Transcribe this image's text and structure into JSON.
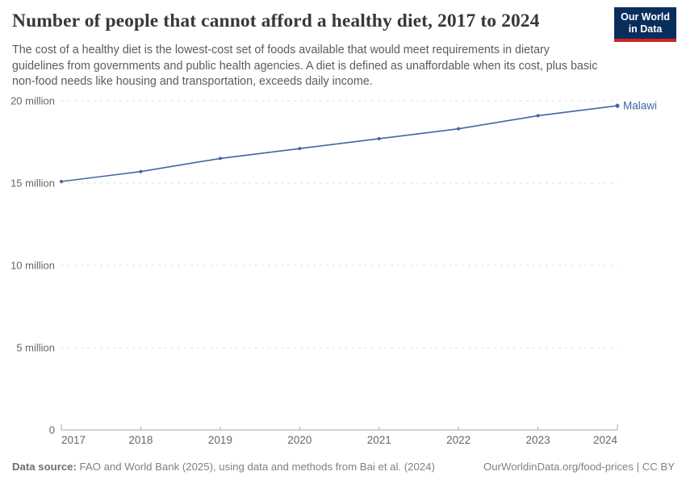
{
  "header": {
    "title": "Number of people that cannot afford a healthy diet, 2017 to 2024",
    "subtitle": "The cost of a healthy diet is the lowest-cost set of foods available that would meet requirements in dietary guidelines from governments and public health agencies. A diet is defined as unaffordable when its cost, plus basic non-food needs like housing and transportation, exceeds daily income.",
    "logo": {
      "line1": "Our World",
      "line2": "in Data",
      "bg_color": "#0A2E5C",
      "bar_color": "#CE261E",
      "text_color": "#FFFFFF"
    }
  },
  "chart_data": {
    "type": "line",
    "title": "Number of people that cannot afford a healthy diet, 2017 to 2024",
    "x": [
      2017,
      2018,
      2019,
      2020,
      2021,
      2022,
      2023,
      2024
    ],
    "series": [
      {
        "name": "Malawi",
        "color": "#4166A5",
        "values": [
          15.1,
          15.7,
          16.5,
          17.1,
          17.7,
          18.3,
          19.1,
          19.7
        ]
      }
    ],
    "unit": "million people",
    "ylim": [
      0,
      20
    ],
    "xlim": [
      2017,
      2024
    ],
    "y_ticks": [
      {
        "value": 0,
        "label": "0"
      },
      {
        "value": 5,
        "label": "5 million"
      },
      {
        "value": 10,
        "label": "10 million"
      },
      {
        "value": 15,
        "label": "15 million"
      },
      {
        "value": 20,
        "label": "20 million"
      }
    ],
    "x_ticks": [
      "2017",
      "2018",
      "2019",
      "2020",
      "2021",
      "2022",
      "2023",
      "2024"
    ],
    "grid": "horizontal-dashed",
    "legend_position": "end-of-line-label",
    "colors": {
      "axis": "#A9A9A9",
      "grid": "#DCDCDC",
      "tick_labels": "#666666"
    }
  },
  "footer": {
    "source_label": "Data source:",
    "source_text": " FAO and World Bank (2025), using data and methods from Bai et al. (2024)",
    "right_text": "OurWorldinData.org/food-prices | CC BY"
  }
}
